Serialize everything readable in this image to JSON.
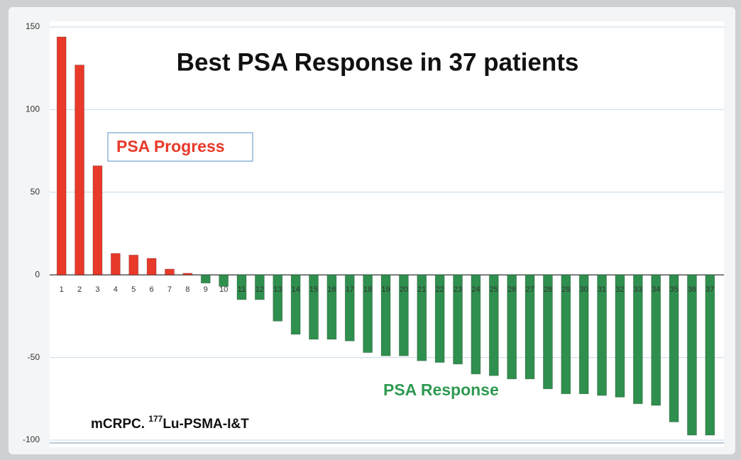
{
  "chart_data": {
    "type": "bar",
    "title": "Best PSA Response in 37 patients",
    "categories": [
      "1",
      "2",
      "3",
      "4",
      "5",
      "6",
      "7",
      "8",
      "9",
      "10",
      "11",
      "12",
      "13",
      "14",
      "15",
      "16",
      "17",
      "18",
      "19",
      "20",
      "21",
      "22",
      "23",
      "24",
      "25",
      "26",
      "27",
      "28",
      "29",
      "30",
      "31",
      "32",
      "33",
      "34",
      "35",
      "36",
      "37"
    ],
    "values": [
      144,
      127,
      66,
      13,
      12,
      10,
      3.5,
      1,
      -5,
      -7,
      -15,
      -15,
      -28,
      -36,
      -39,
      -39,
      -40,
      -47,
      -49,
      -49,
      -52,
      -53,
      -54,
      -60,
      -61,
      -63,
      -63,
      -69,
      -72,
      -72,
      -73,
      -74,
      -78,
      -79,
      -89,
      -97,
      -97
    ],
    "positive_color": "#e8392a",
    "negative_color": "#2f8f4e",
    "ylim": [
      -100,
      150
    ],
    "yticks": [
      -100,
      -50,
      0,
      50,
      100,
      150
    ],
    "grid": true,
    "annotations": {
      "progress": "PSA Progress",
      "response": "PSA Response",
      "footnote": {
        "prefix": "mCRPC.",
        "superscript": "177",
        "suffix": "Lu-PSMA-I&T"
      }
    }
  }
}
